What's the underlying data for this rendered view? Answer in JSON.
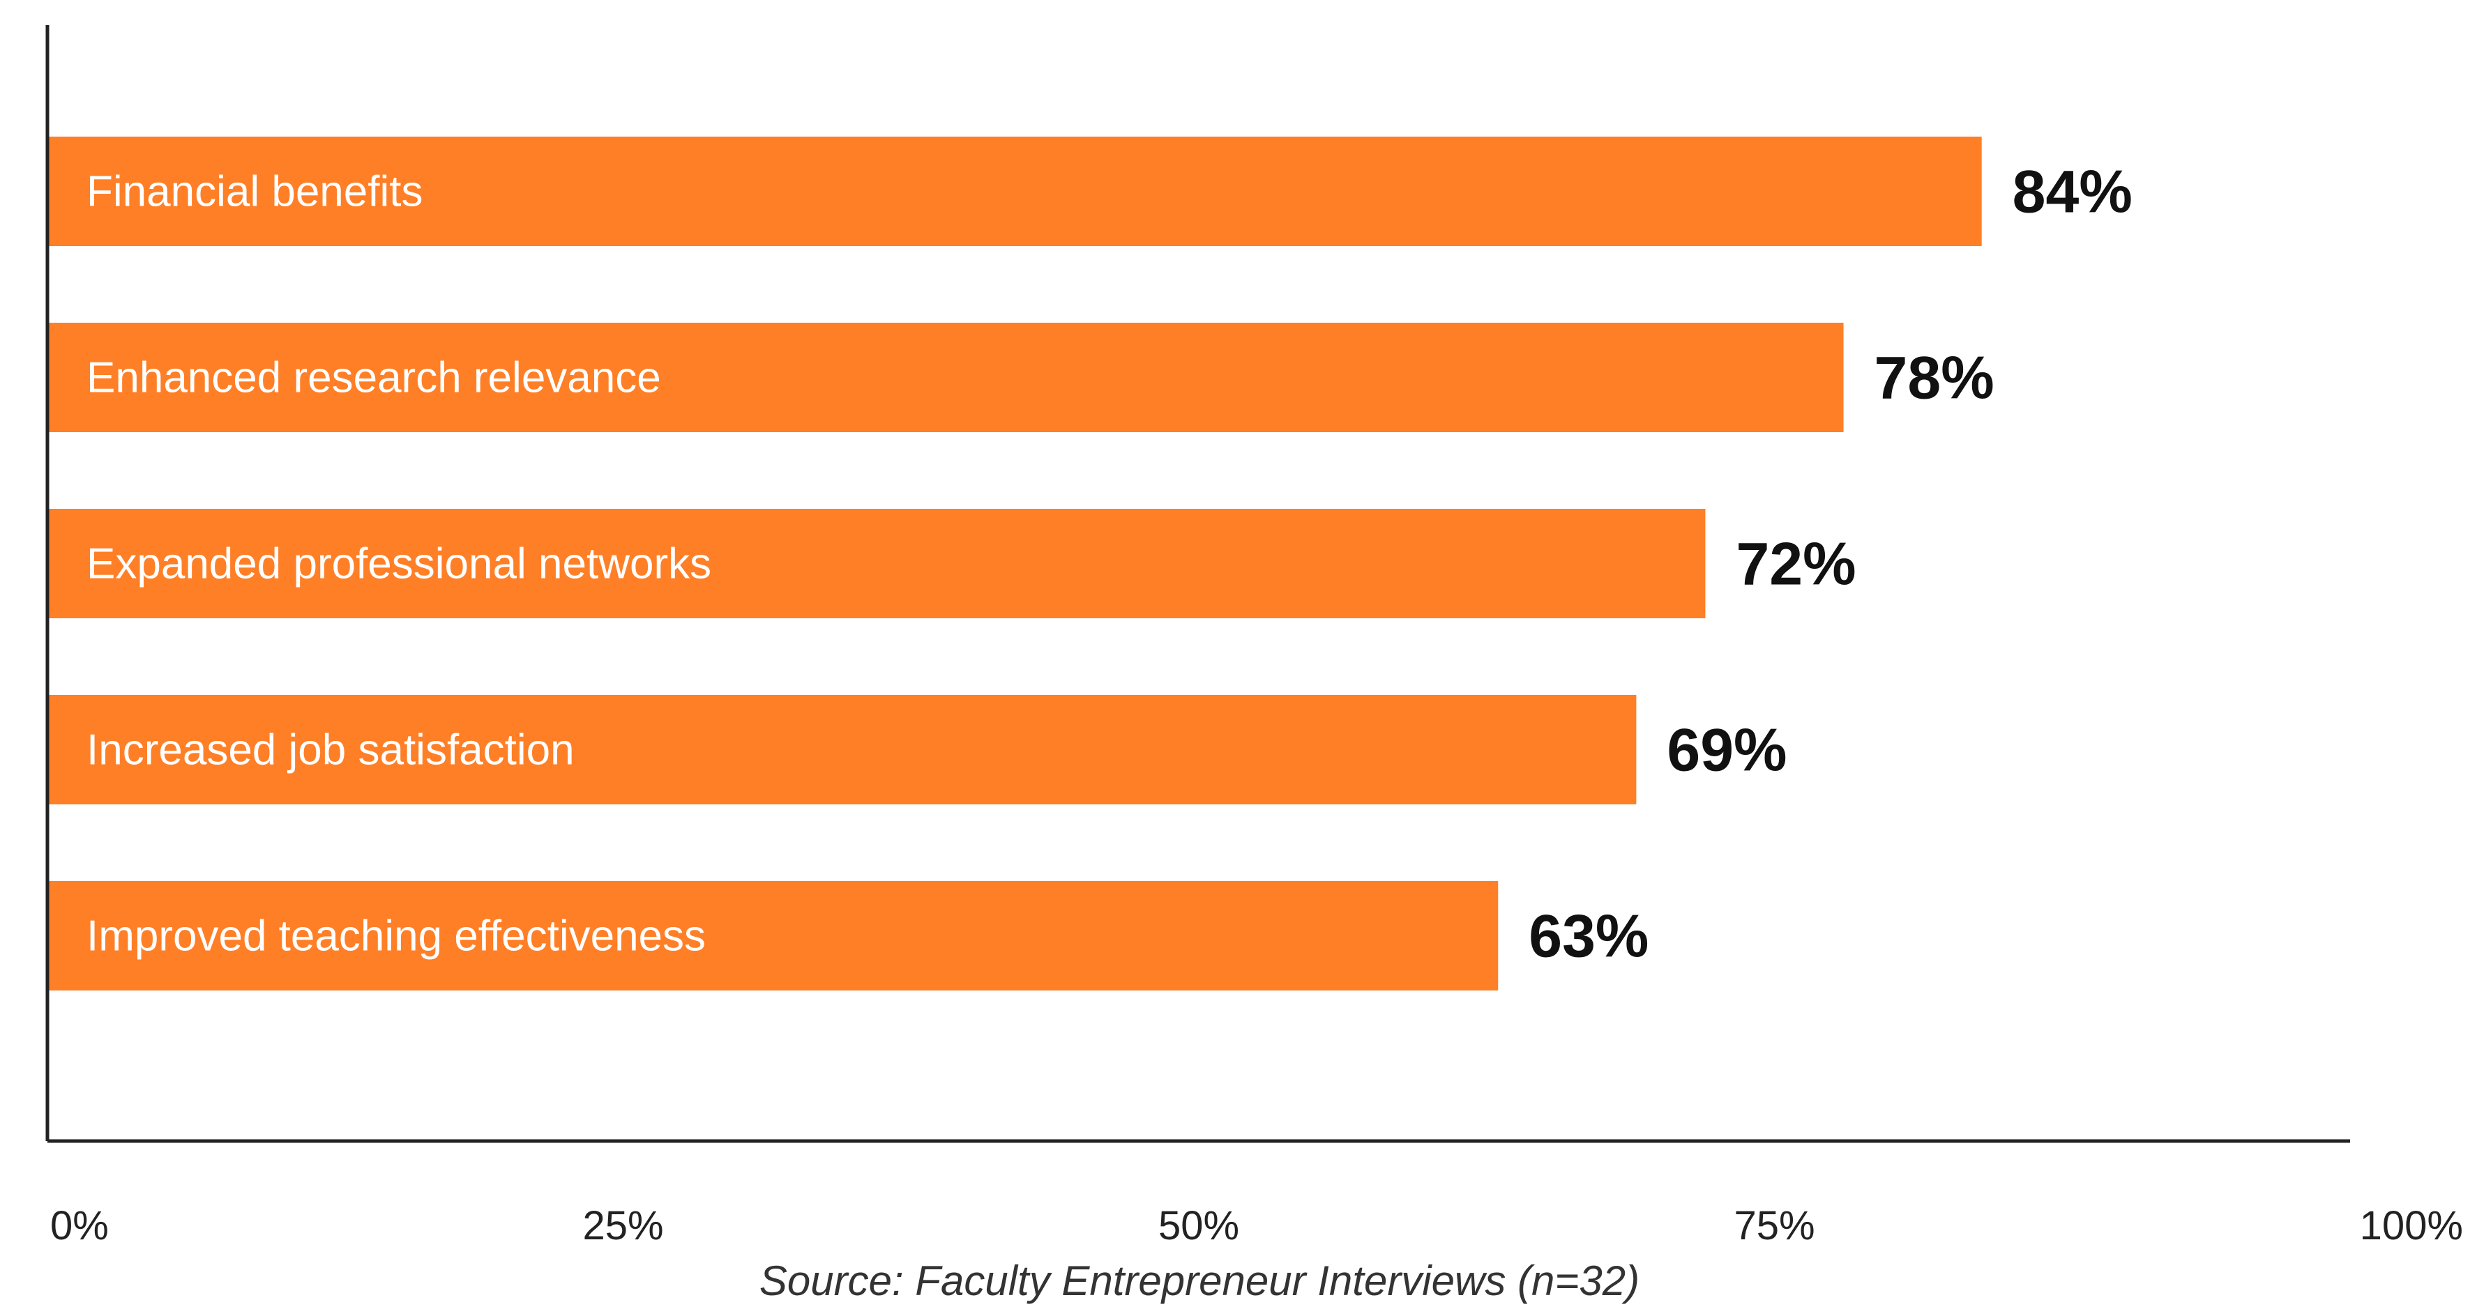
{
  "chart_data": {
    "type": "bar",
    "orientation": "horizontal",
    "categories": [
      "Financial benefits",
      "Enhanced research relevance",
      "Expanded professional networks",
      "Increased job satisfaction",
      "Improved teaching effectiveness"
    ],
    "values": [
      84,
      78,
      72,
      69,
      63
    ],
    "value_labels": [
      "84%",
      "78%",
      "72%",
      "69%",
      "63%"
    ],
    "xlim": [
      0,
      100
    ],
    "x_ticks": [
      0,
      25,
      50,
      75,
      100
    ],
    "x_tick_labels": [
      "0%",
      "25%",
      "50%",
      "75%",
      "100%"
    ],
    "title": "",
    "xlabel": "",
    "ylabel": "",
    "grid": false,
    "legend": false,
    "bar_color": "#FF7F27",
    "axis_color": "#222222",
    "source": "Source: Faculty Entrepreneur Interviews (n=32)"
  }
}
